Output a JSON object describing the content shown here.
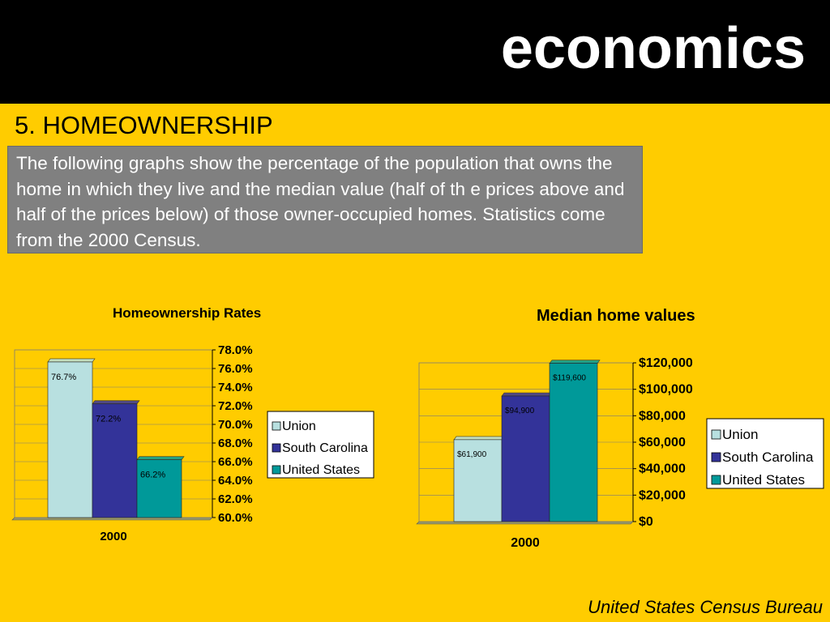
{
  "header": {
    "brand": "economics"
  },
  "section_heading": "5.  HOMEOWNERSHIP",
  "description": "The following graphs show the percentage of the population that owns the home in which they live and the median value (half of th e prices above and half of the prices below) of those owner-occupied homes.  Statistics come from the 2000 Census.",
  "footer": {
    "source": "United States Census Bureau"
  },
  "colors": {
    "union": "#b8e0e0",
    "south_carolina": "#333399",
    "united_states": "#009999",
    "background": "#ffcc00",
    "header_bar": "#000000",
    "text_box": "#808080"
  },
  "chart_data": [
    {
      "type": "bar",
      "title": "Homeownership Rates",
      "categories": [
        "2000"
      ],
      "series": [
        {
          "name": "Union",
          "values": [
            76.7
          ],
          "label": "76.7%"
        },
        {
          "name": "South Carolina",
          "values": [
            72.2
          ],
          "label": "72.2%"
        },
        {
          "name": "United States",
          "values": [
            66.2
          ],
          "label": "66.2%"
        }
      ],
      "ylim": [
        60,
        78
      ],
      "y_ticks": [
        "78.0%",
        "76.0%",
        "74.0%",
        "72.0%",
        "70.0%",
        "68.0%",
        "66.0%",
        "64.0%",
        "62.0%",
        "60.0%"
      ],
      "y_axis_side": "right",
      "legend": "right",
      "grid": true
    },
    {
      "type": "bar",
      "title": "Median home values",
      "categories": [
        "2000"
      ],
      "series": [
        {
          "name": "Union",
          "values": [
            61900
          ],
          "label": "$61,900"
        },
        {
          "name": "South Carolina",
          "values": [
            94900
          ],
          "label": "$94,900"
        },
        {
          "name": "United States",
          "values": [
            119600
          ],
          "label": "$119,600"
        }
      ],
      "ylim": [
        0,
        120000
      ],
      "y_ticks": [
        "$120,000",
        "$100,000",
        "$80,000",
        "$60,000",
        "$40,000",
        "$20,000",
        "$0"
      ],
      "y_axis_side": "right",
      "legend": "right",
      "grid": true
    }
  ]
}
